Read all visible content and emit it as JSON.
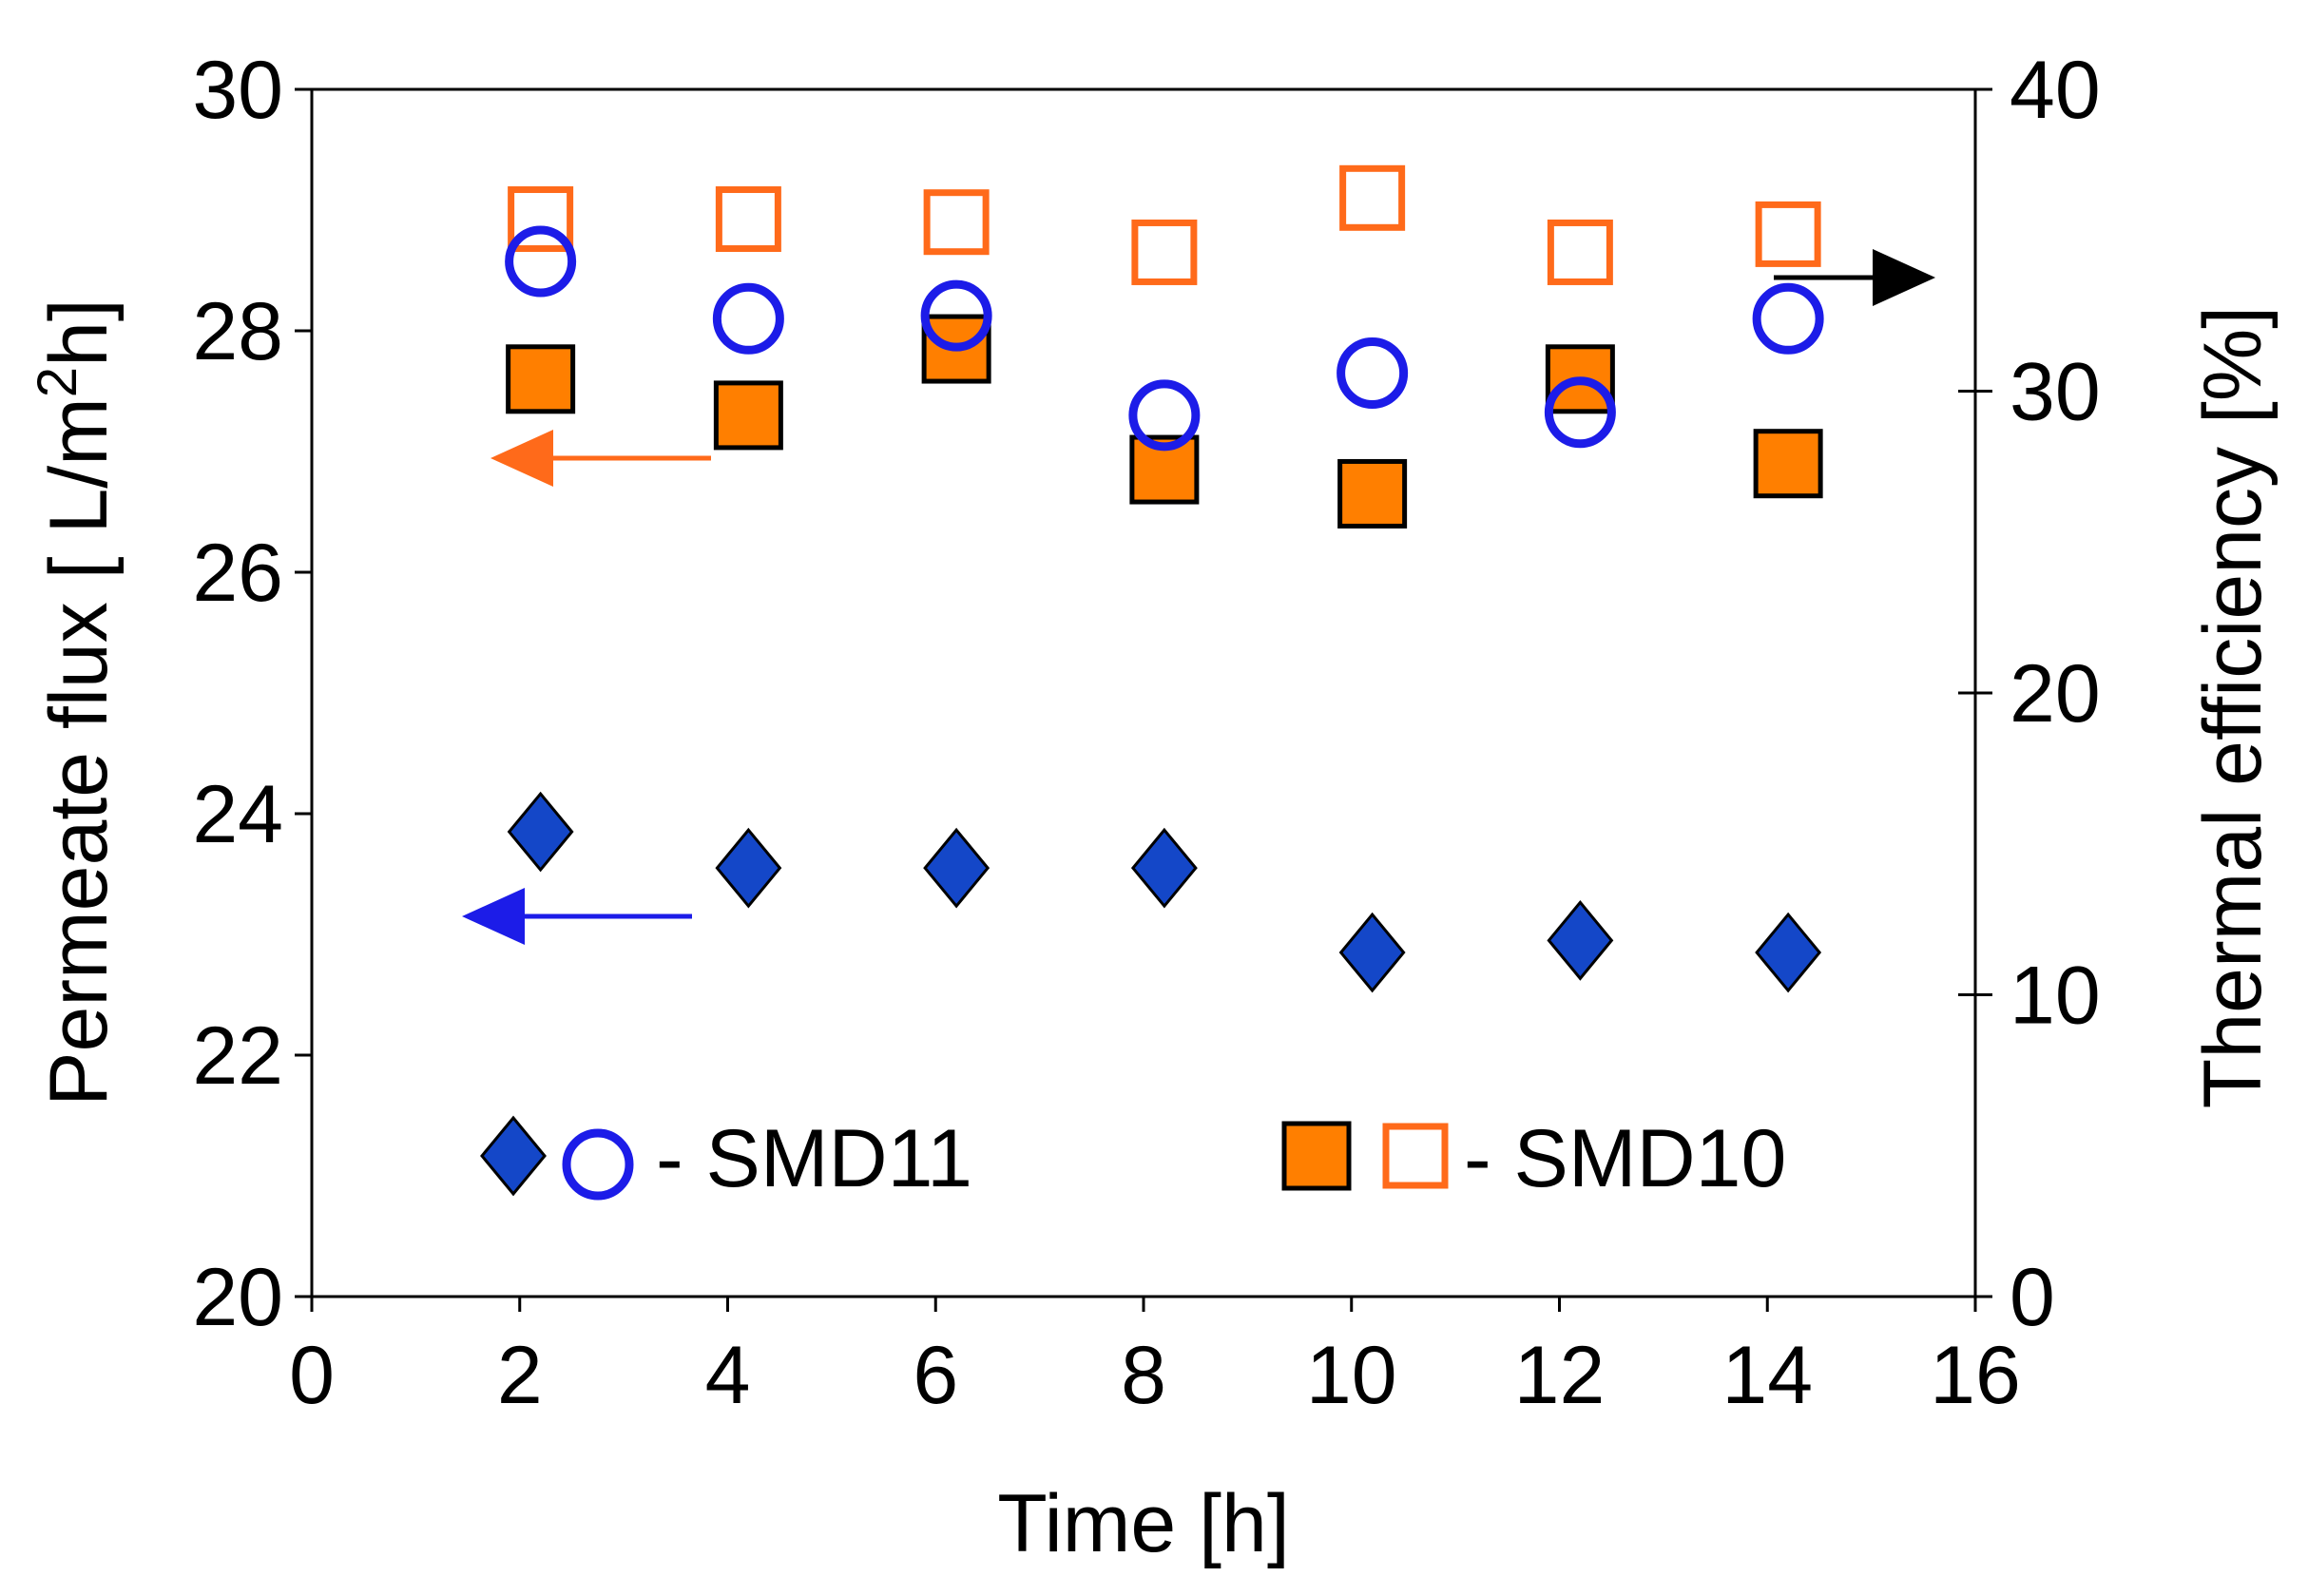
{
  "chart_data": {
    "type": "scatter",
    "title": "",
    "xlabel": "Time [h]",
    "ylabel": "Permeate flux [ L/m2h]",
    "ylabel_parts": {
      "prefix": "Permeate flux [ L/m",
      "sup": "2",
      "suffix": "h]"
    },
    "y2label": "Thermal efficiency [%]",
    "xlim": [
      0,
      16
    ],
    "ylim": [
      20,
      30
    ],
    "y2lim": [
      0,
      40
    ],
    "xticks": [
      "0",
      "2",
      "4",
      "6",
      "8",
      "10",
      "12",
      "14",
      "16"
    ],
    "yticks": [
      "20",
      "22",
      "24",
      "26",
      "28",
      "30"
    ],
    "y2ticks": [
      "0",
      "10",
      "20",
      "30",
      "40"
    ],
    "grid": false,
    "series": [
      {
        "name": "SMD11 permeate flux",
        "axis": "left",
        "marker": "diamond-filled",
        "color": "#1447C8",
        "x": [
          2.2,
          4.2,
          6.2,
          8.2,
          10.2,
          12.2,
          14.2
        ],
        "y": [
          23.85,
          23.55,
          23.55,
          23.55,
          22.85,
          22.95,
          22.85
        ]
      },
      {
        "name": "SMD11 thermal efficiency",
        "axis": "right",
        "marker": "circle-open",
        "color": "#1C1CE8",
        "x": [
          2.2,
          4.2,
          6.2,
          8.2,
          10.2,
          12.2,
          14.2
        ],
        "y": [
          34.3,
          32.4,
          32.5,
          29.2,
          30.6,
          29.3,
          32.4
        ]
      },
      {
        "name": "SMD10 permeate flux",
        "axis": "left",
        "marker": "square-filled",
        "color": "#FF7F00",
        "x": [
          2.2,
          4.2,
          6.2,
          8.2,
          10.2,
          12.2,
          14.2
        ],
        "y": [
          27.6,
          27.3,
          27.85,
          26.85,
          26.65,
          27.6,
          26.9
        ]
      },
      {
        "name": "SMD10 thermal efficiency",
        "axis": "right",
        "marker": "square-open",
        "color": "#FF6A1A",
        "x": [
          2.2,
          4.2,
          6.2,
          8.2,
          10.2,
          12.2,
          14.2
        ],
        "y": [
          35.7,
          35.7,
          35.6,
          34.6,
          36.4,
          34.6,
          35.2
        ]
      }
    ],
    "legend": [
      {
        "label": "- SMD11",
        "markers": [
          "diamond-filled",
          "circle-open"
        ]
      },
      {
        "label": "- SMD10",
        "markers": [
          "square-filled",
          "square-open"
        ]
      }
    ],
    "annotations": [
      {
        "type": "arrow",
        "points_to": "left axis",
        "color": "#FF6A1A",
        "series": "SMD10 permeate flux"
      },
      {
        "type": "arrow",
        "points_to": "left axis",
        "color": "#1C1CE8",
        "series": "SMD11 permeate flux"
      },
      {
        "type": "arrow",
        "points_to": "right axis",
        "color": "#000000",
        "series": "thermal efficiency"
      }
    ]
  }
}
